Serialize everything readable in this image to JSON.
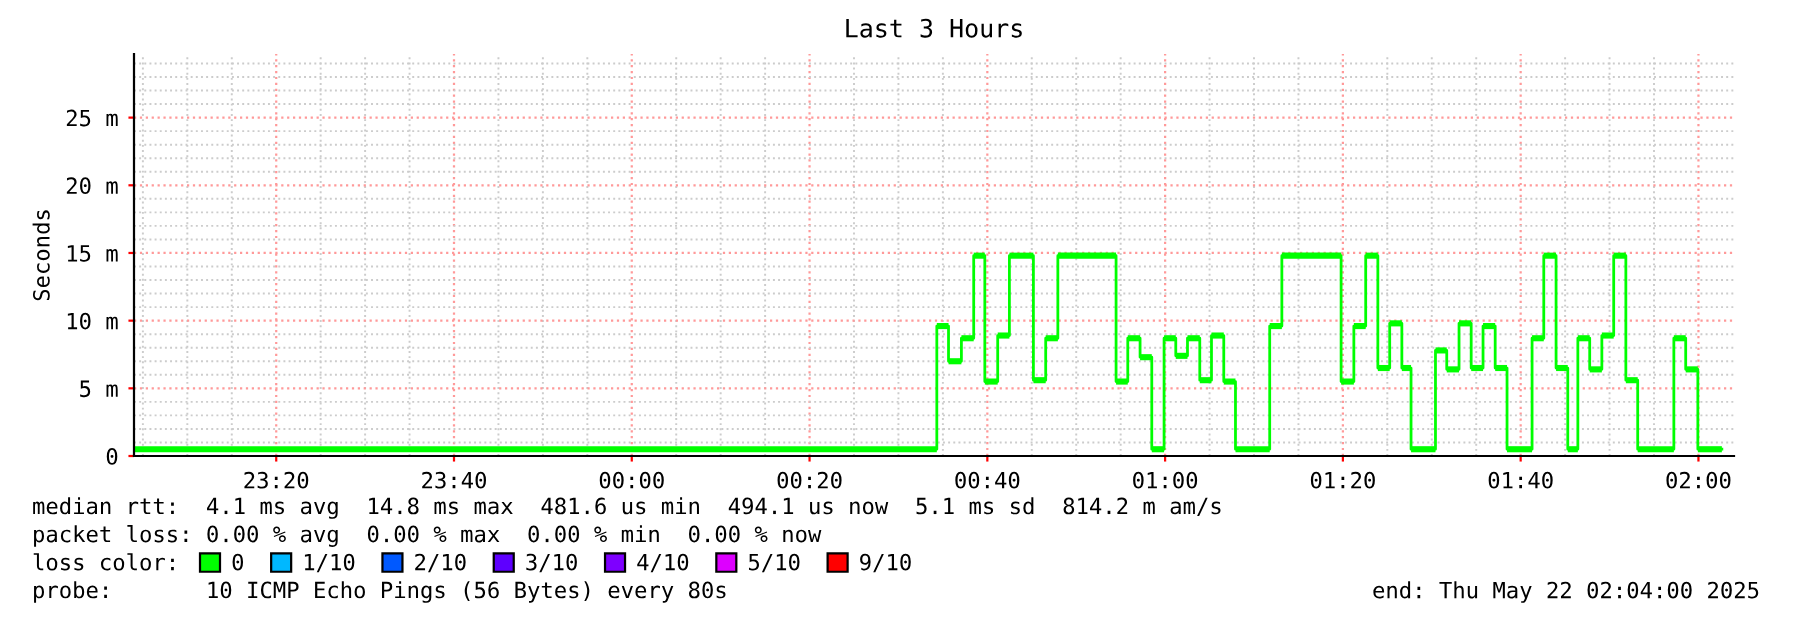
{
  "chart_data": {
    "type": "step",
    "title": "Last 3 Hours",
    "ylabel": "Seconds",
    "x": [
      "2025-05-21T23:04:00",
      "2025-05-22T00:34:19",
      "2025-05-22T00:35:38",
      "2025-05-22T00:37:05",
      "2025-05-22T00:38:28",
      "2025-05-22T00:39:43",
      "2025-05-22T00:41:10",
      "2025-05-22T00:42:29",
      "2025-05-22T00:45:11",
      "2025-05-22T00:46:34",
      "2025-05-22T00:47:56",
      "2025-05-22T00:54:29",
      "2025-05-22T00:55:48",
      "2025-05-22T00:57:11",
      "2025-05-22T00:58:30",
      "2025-05-22T00:59:53",
      "2025-05-22T01:01:12",
      "2025-05-22T01:02:31",
      "2025-05-22T01:03:54",
      "2025-05-22T01:05:13",
      "2025-05-22T01:06:36",
      "2025-05-22T01:07:55",
      "2025-05-22T01:11:46",
      "2025-05-22T01:13:08",
      "2025-05-22T01:19:48",
      "2025-05-22T01:21:14",
      "2025-05-22T01:22:34",
      "2025-05-22T01:23:56",
      "2025-05-22T01:25:16",
      "2025-05-22T01:26:38",
      "2025-05-22T01:27:40",
      "2025-05-22T01:30:25",
      "2025-05-22T01:31:41",
      "2025-05-22T01:33:04",
      "2025-05-22T01:34:26",
      "2025-05-22T01:35:46",
      "2025-05-22T01:37:08",
      "2025-05-22T01:38:28",
      "2025-05-22T01:41:17",
      "2025-05-22T01:42:36",
      "2025-05-22T01:43:59",
      "2025-05-22T01:45:18",
      "2025-05-22T01:46:26",
      "2025-05-22T01:47:46",
      "2025-05-22T01:49:08",
      "2025-05-22T01:50:28",
      "2025-05-22T01:51:50",
      "2025-05-22T01:53:10",
      "2025-05-22T01:57:14",
      "2025-05-22T01:58:34",
      "2025-05-22T01:59:56",
      "2025-05-22T02:02:38"
    ],
    "series": [
      {
        "name": "0",
        "color": "#00ff00",
        "values": [
          0.5,
          9.6,
          7.0,
          8.7,
          14.8,
          5.5,
          8.9,
          14.8,
          5.6,
          8.7,
          14.8,
          5.5,
          8.7,
          7.3,
          0.5,
          8.7,
          7.4,
          8.7,
          5.6,
          8.9,
          5.5,
          0.5,
          9.6,
          14.8,
          5.5,
          9.6,
          14.8,
          6.5,
          9.8,
          6.5,
          0.5,
          7.8,
          6.4,
          9.8,
          6.5,
          9.6,
          6.5,
          0.5,
          8.7,
          14.8,
          6.5,
          0.5,
          8.7,
          6.4,
          8.9,
          14.8,
          5.6,
          0.5,
          8.7,
          6.4,
          0.5,
          0.5
        ]
      },
      {
        "name": "1/10",
        "color": "#00b8ff",
        "values": [
          null,
          null,
          null,
          null,
          null,
          null,
          null,
          null,
          null,
          null,
          null,
          null,
          null,
          null,
          null,
          null,
          null,
          null,
          null,
          null,
          null,
          null,
          null,
          null,
          null,
          null,
          null,
          null,
          null,
          null,
          null,
          null,
          null,
          null,
          null,
          null,
          null,
          null,
          null,
          null,
          null,
          null,
          null,
          null,
          null,
          null,
          null,
          null,
          null,
          null,
          null,
          null
        ]
      },
      {
        "name": "2/10",
        "color": "#0059ff",
        "values": [
          null,
          null,
          null,
          null,
          null,
          null,
          null,
          null,
          null,
          null,
          null,
          null,
          null,
          null,
          null,
          null,
          null,
          null,
          null,
          null,
          null,
          null,
          null,
          null,
          null,
          null,
          null,
          null,
          null,
          null,
          null,
          null,
          null,
          null,
          null,
          null,
          null,
          null,
          null,
          null,
          null,
          null,
          null,
          null,
          null,
          null,
          null,
          null,
          null,
          null,
          null,
          null
        ]
      },
      {
        "name": "3/10",
        "color": "#5e00ff",
        "values": [
          null,
          null,
          null,
          null,
          null,
          null,
          null,
          null,
          null,
          null,
          null,
          null,
          null,
          null,
          null,
          null,
          null,
          null,
          null,
          null,
          null,
          null,
          null,
          null,
          null,
          null,
          null,
          null,
          null,
          null,
          null,
          null,
          null,
          null,
          null,
          null,
          null,
          null,
          null,
          null,
          null,
          null,
          null,
          null,
          null,
          null,
          null,
          null,
          null,
          null,
          null,
          null
        ]
      },
      {
        "name": "4/10",
        "color": "#7e00ff",
        "values": [
          null,
          null,
          null,
          null,
          null,
          null,
          null,
          null,
          null,
          null,
          null,
          null,
          null,
          null,
          null,
          null,
          null,
          null,
          null,
          null,
          null,
          null,
          null,
          null,
          null,
          null,
          null,
          null,
          null,
          null,
          null,
          null,
          null,
          null,
          null,
          null,
          null,
          null,
          null,
          null,
          null,
          null,
          null,
          null,
          null,
          null,
          null,
          null,
          null,
          null,
          null,
          null
        ]
      },
      {
        "name": "5/10",
        "color": "#dd00ff",
        "values": [
          null,
          null,
          null,
          null,
          null,
          null,
          null,
          null,
          null,
          null,
          null,
          null,
          null,
          null,
          null,
          null,
          null,
          null,
          null,
          null,
          null,
          null,
          null,
          null,
          null,
          null,
          null,
          null,
          null,
          null,
          null,
          null,
          null,
          null,
          null,
          null,
          null,
          null,
          null,
          null,
          null,
          null,
          null,
          null,
          null,
          null,
          null,
          null,
          null,
          null,
          null,
          null
        ]
      },
      {
        "name": "9/10",
        "color": "#ff0000",
        "values": [
          null,
          null,
          null,
          null,
          null,
          null,
          null,
          null,
          null,
          null,
          null,
          null,
          null,
          null,
          null,
          null,
          null,
          null,
          null,
          null,
          null,
          null,
          null,
          null,
          null,
          null,
          null,
          null,
          null,
          null,
          null,
          null,
          null,
          null,
          null,
          null,
          null,
          null,
          null,
          null,
          null,
          null,
          null,
          null,
          null,
          null,
          null,
          null,
          null,
          null,
          null,
          null
        ]
      }
    ],
    "xlim": [
      "2025-05-21T23:04",
      "2025-05-22T02:04"
    ],
    "xticks": [
      {
        "value": "2025-05-21T23:20",
        "label": "23:20"
      },
      {
        "value": "2025-05-21T23:40",
        "label": "23:40"
      },
      {
        "value": "2025-05-22T00:00",
        "label": "00:00"
      },
      {
        "value": "2025-05-22T00:20",
        "label": "00:20"
      },
      {
        "value": "2025-05-22T00:40",
        "label": "00:40"
      },
      {
        "value": "2025-05-22T01:00",
        "label": "01:00"
      },
      {
        "value": "2025-05-22T01:20",
        "label": "01:20"
      },
      {
        "value": "2025-05-22T01:40",
        "label": "01:40"
      },
      {
        "value": "2025-05-22T02:00",
        "label": "02:00"
      }
    ],
    "ylim": [
      0,
      29.7
    ],
    "yticks": [
      0,
      {
        "value": 5,
        "label": "5 m"
      },
      {
        "value": 10,
        "label": "10 m"
      },
      {
        "value": 15,
        "label": "15 m"
      },
      {
        "value": 20,
        "label": "20 m"
      },
      {
        "value": 25,
        "label": "25 m"
      }
    ],
    "grid": true,
    "legend": "bottom",
    "annotations": [
      "median rtt:  4.1 ms avg  14.8 ms max  481.6 us min  494.1 us now  5.1 ms sd  814.2 m am/s",
      "packet loss: 0.00 % avg  0.00 % max  0.00 % min  0.00 % now",
      "loss color:",
      "probe:       10 ICMP Echo Pings (56 Bytes) every 80s",
      "end: Thu May 22 02:04:00 2025"
    ]
  }
}
